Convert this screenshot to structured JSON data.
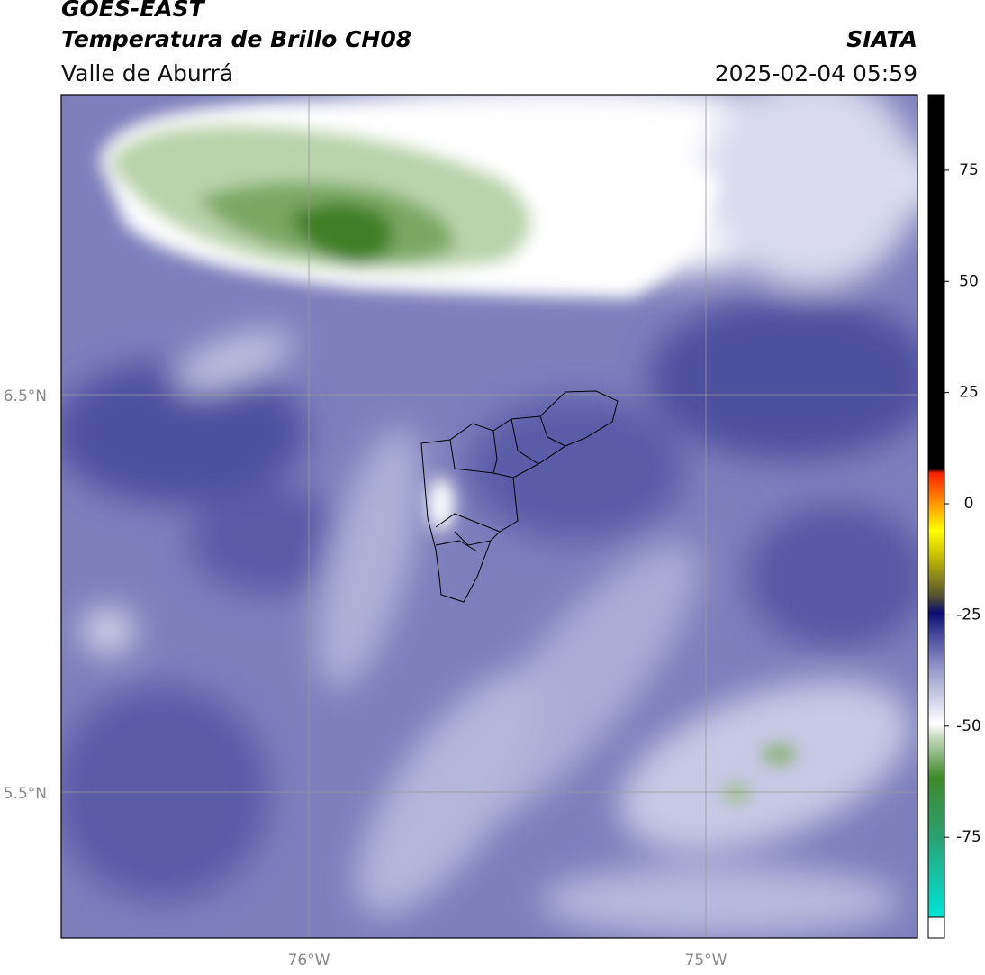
{
  "header": {
    "title": "GOES-EAST",
    "subtitle": "Temperatura de Brillo CH08",
    "region": "Valle de Aburrá",
    "source": "SIATA",
    "datetime": "2025-02-04 05:59"
  },
  "map": {
    "lat_labels": [
      "6.5°N",
      "5.5°N"
    ],
    "lon_labels": [
      "76°W",
      "75°W"
    ]
  },
  "colorbar": {
    "range": [
      -93,
      92
    ],
    "ticks": [
      75,
      50,
      25,
      0,
      -25,
      -50,
      -75
    ]
  }
}
